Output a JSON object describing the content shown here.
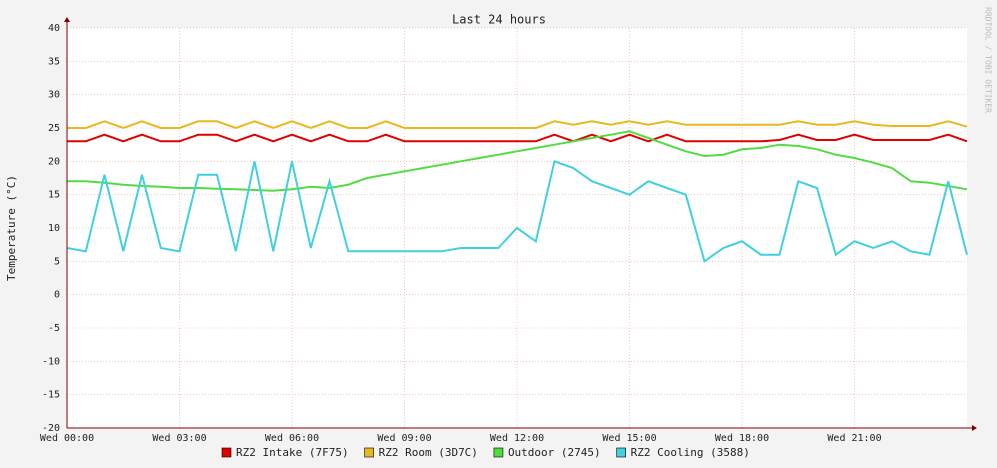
{
  "chart_data": {
    "type": "line",
    "title": "Last 24 hours",
    "y_label": "Temperature (°C)",
    "watermark": "RRDTOOL / TOBI OETIKER",
    "xlim": [
      0,
      24
    ],
    "xticks": [
      {
        "value": 0,
        "label": "Wed 00:00"
      },
      {
        "value": 3,
        "label": "Wed 03:00"
      },
      {
        "value": 6,
        "label": "Wed 06:00"
      },
      {
        "value": 9,
        "label": "Wed 09:00"
      },
      {
        "value": 12,
        "label": "Wed 12:00"
      },
      {
        "value": 15,
        "label": "Wed 15:00"
      },
      {
        "value": 18,
        "label": "Wed 18:00"
      },
      {
        "value": 21,
        "label": "Wed 21:00"
      }
    ],
    "ylim": [
      -20,
      40
    ],
    "yticks": [
      -20,
      -15,
      -10,
      -5,
      0,
      5,
      10,
      15,
      20,
      25,
      30,
      35,
      40
    ],
    "grid": true,
    "x": [
      0,
      0.5,
      1,
      1.5,
      2,
      2.5,
      3,
      3.5,
      4,
      4.5,
      5,
      5.5,
      6,
      6.5,
      7,
      7.5,
      8,
      8.5,
      9,
      9.5,
      10,
      10.5,
      11,
      11.5,
      12,
      12.5,
      13,
      13.5,
      14,
      14.5,
      15,
      15.5,
      16,
      16.5,
      17,
      17.5,
      18,
      18.5,
      19,
      19.5,
      20,
      20.5,
      21,
      21.5,
      22,
      22.5,
      23,
      23.5,
      24
    ],
    "series": [
      {
        "name": "RZ2 Intake (7F75)",
        "color": "#e00000",
        "values": [
          23,
          23,
          24,
          23,
          24,
          23,
          23,
          24,
          24,
          23,
          24,
          23,
          24,
          23,
          24,
          23,
          23,
          24,
          23,
          23,
          23,
          23,
          23,
          23,
          23,
          23,
          24,
          23,
          24,
          23,
          24,
          23,
          24,
          23,
          23,
          23,
          23,
          23,
          23.2,
          24,
          23.2,
          23.2,
          24,
          23.2,
          23.2,
          23.2,
          23.2,
          24,
          23
        ]
      },
      {
        "name": "RZ2 Room (3D7C)",
        "color": "#e8b820",
        "values": [
          25,
          25,
          26,
          25,
          26,
          25,
          25,
          26,
          26,
          25,
          26,
          25,
          26,
          25,
          26,
          25,
          25,
          26,
          25,
          25,
          25,
          25,
          25,
          25,
          25,
          25,
          26,
          25.5,
          26,
          25.5,
          26,
          25.5,
          26,
          25.5,
          25.5,
          25.5,
          25.5,
          25.5,
          25.5,
          26,
          25.5,
          25.5,
          26,
          25.5,
          25.3,
          25.3,
          25.3,
          26,
          25.2
        ]
      },
      {
        "name": "Outdoor (2745)",
        "color": "#50dd40",
        "values": [
          17,
          17,
          16.8,
          16.5,
          16.3,
          16.2,
          16,
          16,
          15.9,
          15.8,
          15.7,
          15.6,
          15.8,
          16.2,
          16,
          16.5,
          17.5,
          18,
          18.5,
          19,
          19.5,
          20,
          20.5,
          21,
          21.5,
          22,
          22.5,
          23,
          23.5,
          24,
          24.5,
          23.5,
          22.5,
          21.5,
          20.8,
          21,
          21.8,
          22,
          22.5,
          22.3,
          21.8,
          21,
          20.5,
          19.8,
          19,
          17,
          16.8,
          16.3,
          15.8
        ]
      },
      {
        "name": "RZ2 Cooling (3588)",
        "color": "#40d0e0",
        "values": [
          7,
          6.5,
          18,
          6.5,
          18,
          7,
          6.5,
          18,
          18,
          6.5,
          20,
          6.5,
          20,
          7,
          17,
          6.5,
          6.5,
          6.5,
          6.5,
          6.5,
          6.5,
          7,
          7,
          7,
          10,
          8,
          20,
          19,
          17,
          16,
          15,
          17,
          16,
          15,
          5,
          7,
          8,
          6,
          6,
          17,
          16,
          6,
          8,
          7,
          8,
          6.5,
          6,
          17,
          6
        ]
      }
    ]
  }
}
